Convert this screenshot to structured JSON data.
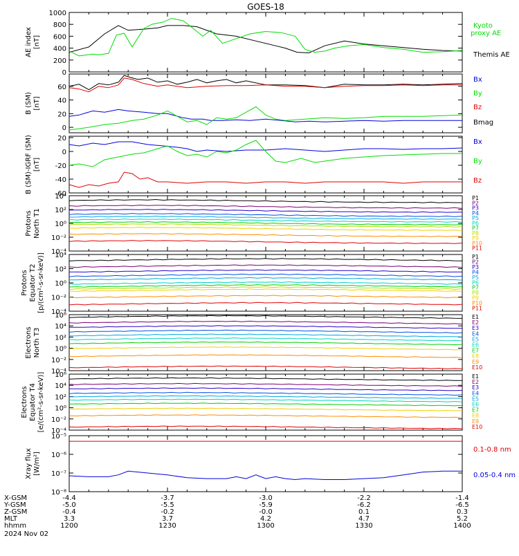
{
  "title": "GOES-18",
  "colors": {
    "black": "#000000",
    "red": "#dd0000",
    "green": "#00dd00",
    "blue": "#0000dd",
    "pcolors": [
      "#000000",
      "#7a0070",
      "#2a00c8",
      "#0050e6",
      "#00a8e0",
      "#00d4c0",
      "#00d000",
      "#b0e000",
      "#f0d000",
      "#ff8c00",
      "#e00000"
    ],
    "ecolors": [
      "#000000",
      "#7a0070",
      "#2a00c8",
      "#0050e6",
      "#00a8e0",
      "#00d4c0",
      "#00d000",
      "#f0d000",
      "#ff8c00",
      "#e00000"
    ]
  },
  "x_axis": {
    "range": [
      1200,
      1400
    ],
    "rows": [
      {
        "label": "X-GSM",
        "values": [
          "-4.4",
          "-3.7",
          "-3.0",
          "-2.2",
          "-1.4"
        ]
      },
      {
        "label": "Y-GSM",
        "values": [
          "-5.0",
          "-5.5",
          "-5.9",
          "-6.2",
          "-6.5"
        ]
      },
      {
        "label": "Z-GSM",
        "values": [
          "-0.4",
          "-0.2",
          "-0.0",
          "0.1",
          "0.3"
        ]
      },
      {
        "label": "MLT",
        "values": [
          "3.3",
          "3.7",
          "4.2",
          "4.7",
          "5.2"
        ]
      },
      {
        "label": "hhmm",
        "values": [
          "1200",
          "1230",
          "1300",
          "1330",
          "1400"
        ]
      }
    ],
    "date": "2024 Nov 02"
  },
  "chart_data": [
    {
      "type": "line",
      "ylabel": [
        "AE index",
        "[nT]"
      ],
      "ylim": [
        0,
        1000
      ],
      "yticks": [
        0,
        200,
        400,
        600,
        800,
        1000
      ],
      "ytick_labels": [
        "0",
        "200",
        "400",
        "600",
        "800",
        "1000"
      ],
      "legend": [
        "Kyoto",
        "proxy AE",
        "Themis AE"
      ],
      "series": [
        {
          "name": "Themis AE",
          "color": "black",
          "x": [
            1200,
            1210,
            1218,
            1225,
            1230,
            1238,
            1245,
            1250,
            1258,
            1265,
            1275,
            1285,
            1295,
            1305,
            1310,
            1316,
            1322,
            1330,
            1340,
            1350,
            1360,
            1370,
            1380,
            1390,
            1400
          ],
          "y": [
            330,
            420,
            640,
            780,
            700,
            720,
            740,
            780,
            780,
            760,
            640,
            600,
            520,
            440,
            400,
            330,
            320,
            440,
            520,
            470,
            440,
            410,
            380,
            360,
            350
          ]
        },
        {
          "name": "Kyoto proxy AE",
          "color": "green",
          "x": [
            1200,
            1205,
            1212,
            1215,
            1220,
            1224,
            1228,
            1232,
            1238,
            1242,
            1248,
            1252,
            1258,
            1262,
            1268,
            1272,
            1278,
            1285,
            1292,
            1300,
            1308,
            1315,
            1320,
            1325,
            1330,
            1335,
            1342,
            1350,
            1360,
            1370,
            1380,
            1390,
            1400
          ],
          "y": [
            350,
            270,
            300,
            290,
            310,
            620,
            650,
            420,
            730,
            800,
            840,
            900,
            860,
            760,
            600,
            700,
            480,
            560,
            640,
            680,
            660,
            600,
            380,
            330,
            350,
            400,
            440,
            460,
            410,
            380,
            330,
            340,
            360
          ]
        }
      ]
    },
    {
      "type": "line",
      "ylabel": [
        "B (SM)",
        "[nT]"
      ],
      "ylim": [
        -8,
        78
      ],
      "yticks": [
        0,
        20,
        40,
        60
      ],
      "ytick_labels": [
        "0",
        "20",
        "40",
        "60"
      ],
      "legend": [
        "Bx",
        "By",
        "Bz",
        "Bmag"
      ],
      "series": [
        {
          "name": "Bmag",
          "color": "black",
          "x": [
            1200,
            1205,
            1210,
            1215,
            1220,
            1225,
            1228,
            1230,
            1235,
            1240,
            1245,
            1250,
            1255,
            1260,
            1265,
            1270,
            1275,
            1280,
            1285,
            1290,
            1300,
            1310,
            1320,
            1330,
            1340,
            1350,
            1360,
            1370,
            1380,
            1390,
            1400
          ],
          "y": [
            60,
            63,
            55,
            64,
            62,
            66,
            76,
            74,
            70,
            72,
            66,
            68,
            63,
            66,
            70,
            65,
            68,
            70,
            65,
            68,
            62,
            62,
            61,
            58,
            63,
            62,
            62,
            63,
            62,
            63,
            64
          ]
        },
        {
          "name": "Bz",
          "color": "red",
          "x": [
            1200,
            1205,
            1210,
            1215,
            1220,
            1225,
            1228,
            1232,
            1238,
            1245,
            1250,
            1260,
            1270,
            1280,
            1290,
            1300,
            1310,
            1320,
            1330,
            1340,
            1350,
            1360,
            1370,
            1380,
            1390,
            1400
          ],
          "y": [
            58,
            56,
            52,
            60,
            58,
            62,
            72,
            70,
            64,
            60,
            62,
            58,
            60,
            61,
            61,
            62,
            60,
            60,
            58,
            60,
            61,
            61,
            62,
            61,
            62,
            62
          ]
        },
        {
          "name": "Bx",
          "color": "blue",
          "x": [
            1200,
            1205,
            1212,
            1218,
            1225,
            1230,
            1238,
            1245,
            1250,
            1258,
            1262,
            1268,
            1272,
            1278,
            1285,
            1292,
            1300,
            1308,
            1315,
            1322,
            1330,
            1340,
            1350,
            1360,
            1370,
            1380,
            1390,
            1400
          ],
          "y": [
            16,
            18,
            24,
            22,
            26,
            24,
            22,
            20,
            20,
            14,
            12,
            12,
            10,
            10,
            11,
            10,
            12,
            10,
            8,
            9,
            8,
            9,
            10,
            9,
            10,
            10,
            10,
            10
          ]
        },
        {
          "name": "By",
          "color": "green",
          "x": [
            1200,
            1205,
            1210,
            1218,
            1225,
            1232,
            1238,
            1245,
            1250,
            1255,
            1260,
            1265,
            1270,
            1275,
            1280,
            1285,
            1290,
            1295,
            1300,
            1305,
            1310,
            1320,
            1330,
            1340,
            1350,
            1360,
            1370,
            1380,
            1390,
            1400
          ],
          "y": [
            -4,
            -2,
            0,
            4,
            6,
            10,
            12,
            18,
            24,
            16,
            8,
            10,
            4,
            14,
            12,
            14,
            22,
            30,
            18,
            12,
            10,
            12,
            14,
            13,
            14,
            16,
            16,
            16,
            17,
            18
          ]
        }
      ]
    },
    {
      "type": "line",
      "ylabel": [
        "B (SM)-IGRF (SM)",
        "[nT]"
      ],
      "ylim": [
        -60,
        22
      ],
      "yticks": [
        -60,
        -40,
        -20,
        0,
        20
      ],
      "ytick_labels": [
        "-60",
        "-40",
        "-20",
        "0",
        "20"
      ],
      "legend": [
        "Bx",
        "By",
        "Bz"
      ],
      "series": [
        {
          "name": "Bx",
          "color": "blue",
          "x": [
            1200,
            1205,
            1212,
            1218,
            1225,
            1232,
            1240,
            1248,
            1255,
            1260,
            1265,
            1270,
            1280,
            1290,
            1300,
            1310,
            1320,
            1330,
            1340,
            1350,
            1360,
            1370,
            1380,
            1390,
            1400
          ],
          "y": [
            10,
            8,
            12,
            10,
            14,
            14,
            10,
            8,
            6,
            4,
            0,
            2,
            0,
            2,
            2,
            4,
            2,
            0,
            2,
            4,
            4,
            3,
            4,
            4,
            5
          ]
        },
        {
          "name": "By",
          "color": "green",
          "x": [
            1200,
            1205,
            1212,
            1218,
            1225,
            1232,
            1238,
            1245,
            1250,
            1255,
            1260,
            1265,
            1270,
            1275,
            1280,
            1285,
            1290,
            1295,
            1300,
            1305,
            1310,
            1318,
            1325,
            1330,
            1340,
            1350,
            1360,
            1370,
            1380,
            1390,
            1400
          ],
          "y": [
            -20,
            -18,
            -22,
            -12,
            -8,
            -4,
            -2,
            4,
            8,
            0,
            -6,
            -4,
            -8,
            0,
            -2,
            2,
            10,
            16,
            0,
            -14,
            -16,
            -10,
            -16,
            -14,
            -10,
            -8,
            -6,
            -5,
            -4,
            -3,
            -3
          ]
        },
        {
          "name": "Bz",
          "color": "red",
          "x": [
            1200,
            1205,
            1210,
            1215,
            1220,
            1225,
            1228,
            1232,
            1236,
            1240,
            1245,
            1250,
            1260,
            1270,
            1280,
            1290,
            1300,
            1310,
            1320,
            1330,
            1340,
            1350,
            1360,
            1370,
            1380,
            1390,
            1400
          ],
          "y": [
            -48,
            -52,
            -48,
            -50,
            -46,
            -44,
            -30,
            -32,
            -40,
            -38,
            -44,
            -44,
            -46,
            -44,
            -44,
            -46,
            -44,
            -44,
            -46,
            -44,
            -44,
            -44,
            -44,
            -46,
            -44,
            -44,
            -44
          ]
        }
      ]
    },
    {
      "type": "line",
      "log": true,
      "ylabel": [
        "Protons",
        "North T1"
      ],
      "ylim": [
        -4,
        4
      ],
      "yticks": [
        -4,
        -2,
        0,
        2,
        4
      ],
      "ytick_labels": [
        "10⁻⁴",
        "10⁻²",
        "10⁰",
        "10²",
        "10⁴"
      ],
      "legend": [
        "P1",
        "P2",
        "P3",
        "P4",
        "P5",
        "P6",
        "P7",
        "P8",
        "P9",
        "P10",
        "P11"
      ],
      "base": [
        3.0,
        2.2,
        1.6,
        1.0,
        0.6,
        0.2,
        -0.2,
        -0.5,
        -1.0,
        -1.9,
        -2.9
      ],
      "bump": {
        "center": 1240,
        "width": 80,
        "amp": 0.4
      }
    },
    {
      "type": "line",
      "log": true,
      "ylabel": [
        "Protons",
        "Equator T2",
        "[p/(cm²-s-sr-keV)]"
      ],
      "ylim": [
        -4,
        4
      ],
      "yticks": [
        -4,
        -2,
        0,
        2,
        4
      ],
      "ytick_labels": [
        "10⁻⁴",
        "10⁻²",
        "10⁰",
        "10²",
        "10⁴"
      ],
      "legend": [
        "P1",
        "P2",
        "P3",
        "P4",
        "P5",
        "P6",
        "P7",
        "P8",
        "P9",
        "P10",
        "P11"
      ],
      "base": [
        3.0,
        2.1,
        1.4,
        0.8,
        0.3,
        -0.3,
        -0.7,
        -1.0,
        -1.3,
        -2.2,
        -3.2
      ],
      "bump": {
        "center": 1300,
        "width": 90,
        "amp": 0.4
      }
    },
    {
      "type": "line",
      "log": true,
      "ylabel": [
        "Electrons",
        "North T3"
      ],
      "ylim": [
        -4,
        6
      ],
      "yticks": [
        -4,
        -2,
        0,
        2,
        4,
        6
      ],
      "ytick_labels": [
        "10⁻⁴",
        "10⁻²",
        "10⁰",
        "10²",
        "10⁴",
        "10⁶"
      ],
      "legend": [
        "E1",
        "E2",
        "E3",
        "E4",
        "E5",
        "E6",
        "E7",
        "E8",
        "E9",
        "E10"
      ],
      "base": [
        5.2,
        4.2,
        3.4,
        2.6,
        1.9,
        1.2,
        0.5,
        -0.4,
        -1.8,
        -3.8
      ],
      "bump": {
        "center": 1280,
        "width": 100,
        "amp": 0.6
      }
    },
    {
      "type": "line",
      "log": true,
      "ylabel": [
        "Electrons",
        "Equator T4",
        "[e/(cm²-s-sr-keV)]"
      ],
      "ylim": [
        -4,
        6
      ],
      "yticks": [
        -4,
        -2,
        0,
        2,
        4,
        6
      ],
      "ytick_labels": [
        "10⁻⁴",
        "10⁻²",
        "10⁰",
        "10²",
        "10⁴",
        "10⁶"
      ],
      "legend": [
        "E1",
        "E2",
        "E3",
        "E4",
        "E5",
        "E6",
        "E7",
        "E8",
        "E9",
        "E10"
      ],
      "base": [
        4.8,
        3.8,
        3.0,
        2.2,
        1.6,
        1.0,
        0.3,
        -0.6,
        -1.8,
        -3.8
      ],
      "bump": {
        "center": 1260,
        "width": 100,
        "amp": 0.5
      }
    },
    {
      "type": "line",
      "log": true,
      "ylabel": [
        "Xray flux",
        "[W/m²]"
      ],
      "ylim": [
        -8,
        -5
      ],
      "yticks": [
        -8,
        -7,
        -6,
        -5
      ],
      "ytick_labels": [
        "10⁻⁸",
        "10⁻⁷",
        "10⁻⁶",
        "10⁻⁵"
      ],
      "legend": [
        "0.1-0.8 nm",
        "0.05-0.4 nm"
      ],
      "series": [
        {
          "name": "0.1-0.8 nm",
          "color": "red",
          "x": [
            1200,
            1250,
            1300,
            1350,
            1400
          ],
          "y": [
            -5.3,
            -5.3,
            -5.3,
            -5.3,
            -5.3
          ]
        },
        {
          "name": "0.05-0.4 nm",
          "color": "blue",
          "x": [
            1200,
            1210,
            1220,
            1225,
            1230,
            1240,
            1250,
            1260,
            1270,
            1280,
            1285,
            1290,
            1295,
            1300,
            1305,
            1310,
            1315,
            1320,
            1330,
            1340,
            1350,
            1360,
            1370,
            1380,
            1390,
            1400
          ],
          "y": [
            -7.15,
            -7.2,
            -7.2,
            -7.1,
            -6.9,
            -7.0,
            -7.1,
            -7.25,
            -7.3,
            -7.3,
            -7.2,
            -7.3,
            -7.1,
            -7.3,
            -7.2,
            -7.3,
            -7.35,
            -7.3,
            -7.35,
            -7.35,
            -7.3,
            -7.25,
            -7.1,
            -6.95,
            -6.9,
            -6.9
          ]
        }
      ]
    }
  ]
}
